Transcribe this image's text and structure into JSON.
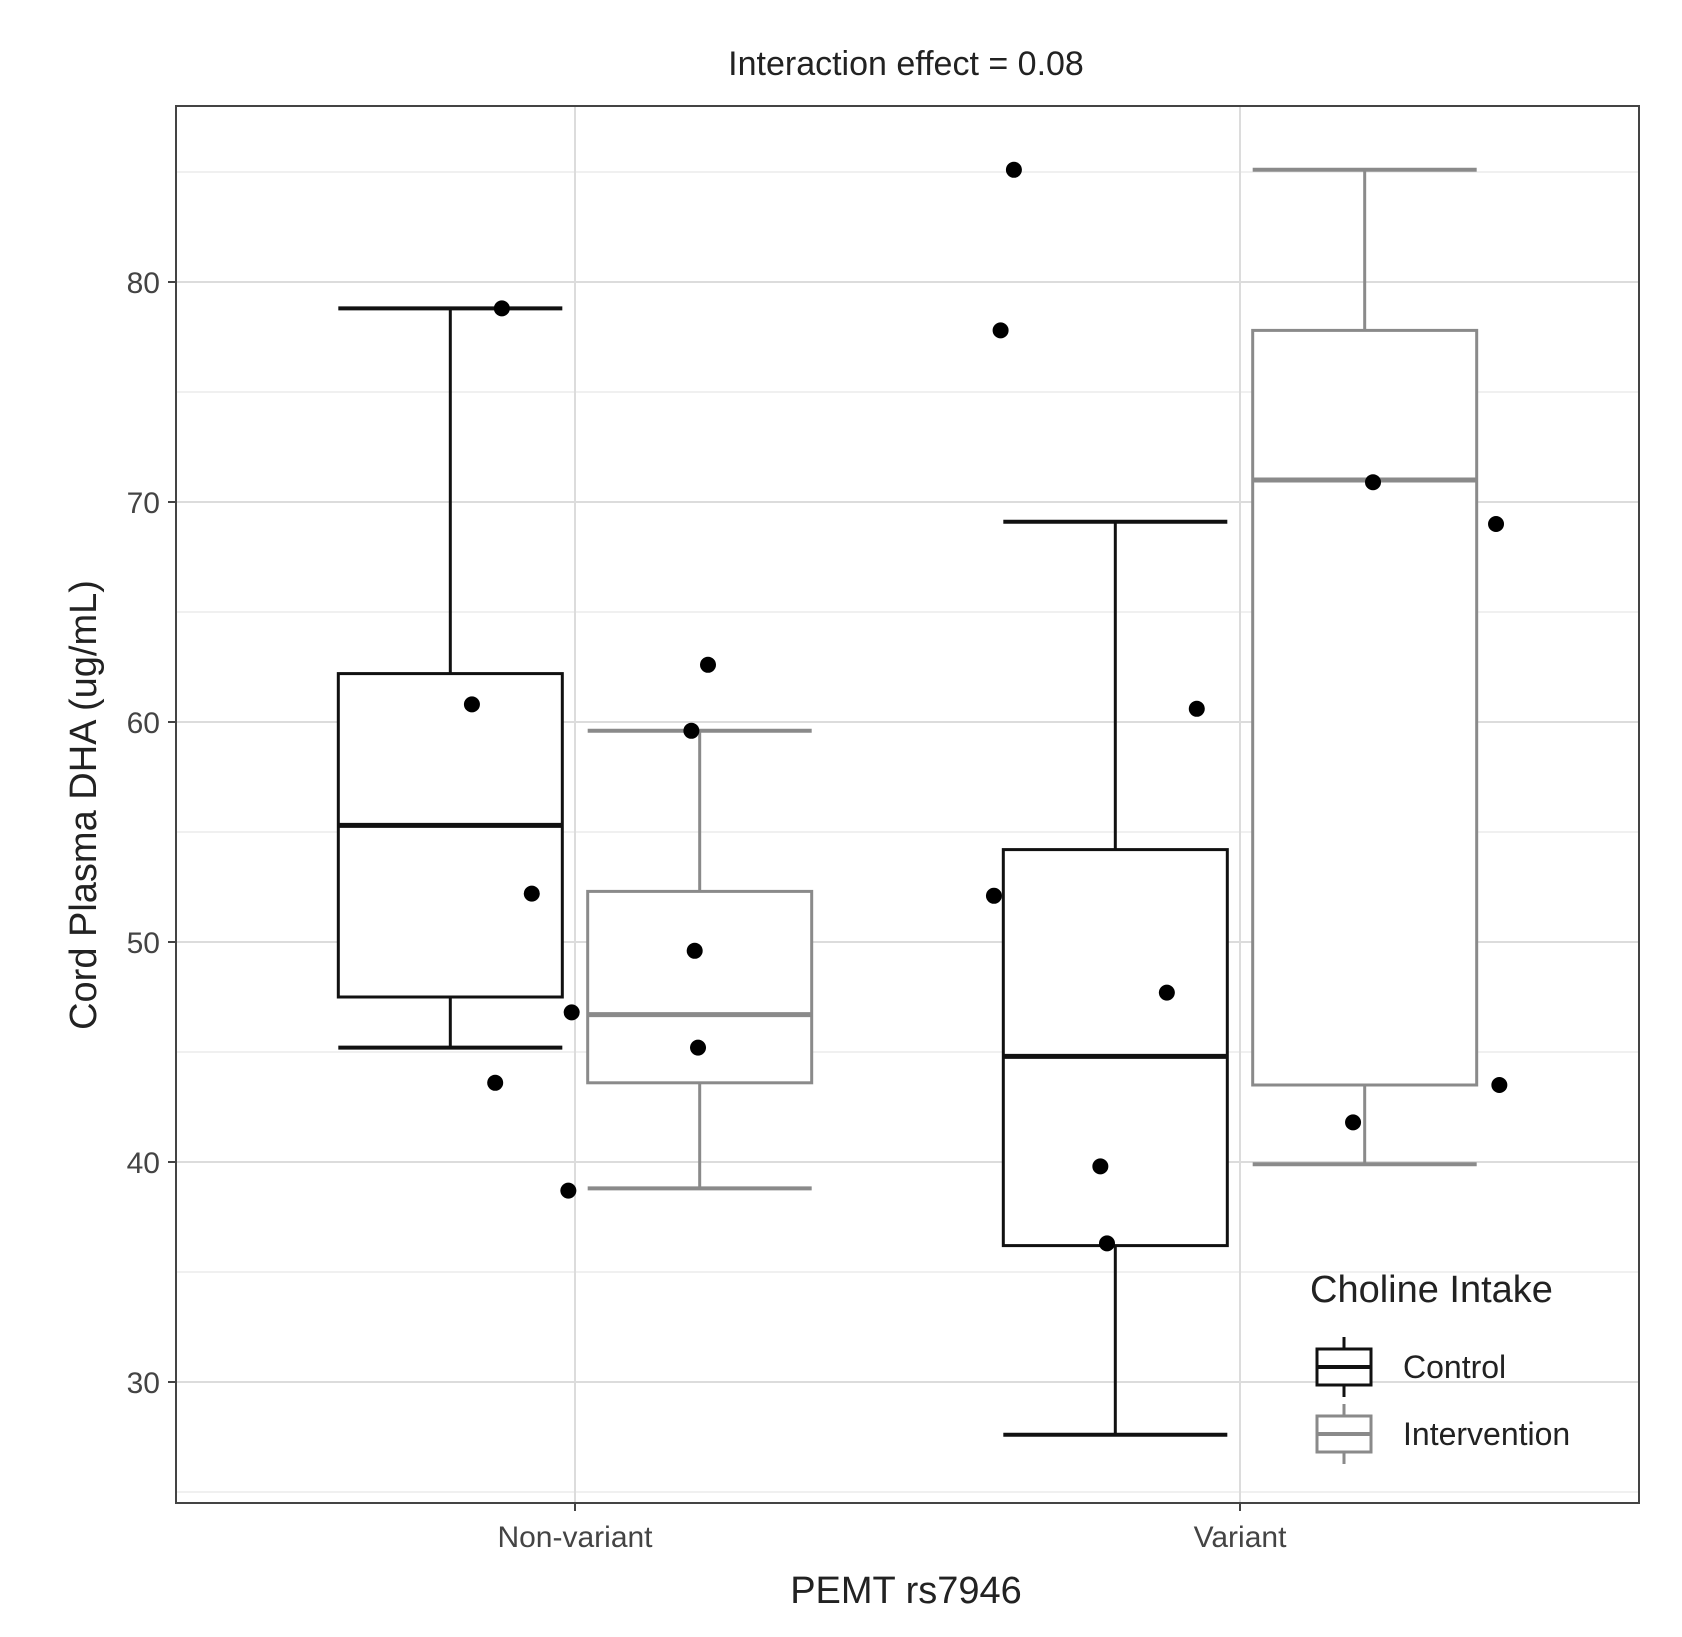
{
  "chart_data": {
    "type": "box",
    "title": "Interaction effect = 0.08",
    "xlabel": "PEMT rs7946",
    "ylabel": "Cord Plasma DHA (ug/mL)",
    "categories": [
      "Non-variant",
      "Variant"
    ],
    "ylim": [
      24.5,
      88
    ],
    "yticks": [
      30,
      40,
      50,
      60,
      70,
      80
    ],
    "grid": true,
    "legend": {
      "title": "Choline Intake",
      "position": "bottom-right inside",
      "entries": [
        "Control",
        "Intervention"
      ]
    },
    "series": [
      {
        "name": "Control",
        "color": "#111111",
        "boxes": [
          {
            "category": "Non-variant",
            "whisker_low": 45.2,
            "q1": 47.5,
            "median": 55.3,
            "q3": 62.2,
            "whisker_high": 78.8
          },
          {
            "category": "Variant",
            "whisker_low": 27.6,
            "q1": 36.2,
            "median": 44.8,
            "q3": 54.2,
            "whisker_high": 69.1
          }
        ]
      },
      {
        "name": "Intervention",
        "color": "#8a8a8a",
        "boxes": [
          {
            "category": "Non-variant",
            "whisker_low": 38.8,
            "q1": 43.6,
            "median": 46.7,
            "q3": 52.3,
            "whisker_high": 59.6
          },
          {
            "category": "Variant",
            "whisker_low": 39.9,
            "q1": 43.5,
            "median": 71.0,
            "q3": 77.8,
            "whisker_high": 85.1
          }
        ]
      }
    ],
    "points": [
      {
        "category": "Non-variant",
        "jitter": -0.155,
        "y": 60.8
      },
      {
        "category": "Non-variant",
        "jitter": -0.11,
        "y": 78.8
      },
      {
        "category": "Non-variant",
        "jitter": -0.065,
        "y": 52.2
      },
      {
        "category": "Non-variant",
        "jitter": -0.12,
        "y": 43.6
      },
      {
        "category": "Non-variant",
        "jitter": -0.005,
        "y": 46.8
      },
      {
        "category": "Non-variant",
        "jitter": -0.01,
        "y": 38.7
      },
      {
        "category": "Non-variant",
        "jitter": 0.175,
        "y": 59.6
      },
      {
        "category": "Non-variant",
        "jitter": 0.2,
        "y": 62.6
      },
      {
        "category": "Non-variant",
        "jitter": 0.18,
        "y": 49.6
      },
      {
        "category": "Non-variant",
        "jitter": 0.185,
        "y": 45.2
      },
      {
        "category": "Variant",
        "jitter": -0.34,
        "y": 85.1
      },
      {
        "category": "Variant",
        "jitter": -0.36,
        "y": 77.8
      },
      {
        "category": "Variant",
        "jitter": -0.37,
        "y": 52.1
      },
      {
        "category": "Variant",
        "jitter": -0.065,
        "y": 60.6
      },
      {
        "category": "Variant",
        "jitter": -0.11,
        "y": 47.7
      },
      {
        "category": "Variant",
        "jitter": -0.21,
        "y": 39.8
      },
      {
        "category": "Variant",
        "jitter": -0.2,
        "y": 36.3
      },
      {
        "category": "Variant",
        "jitter": 0.2,
        "y": 70.9
      },
      {
        "category": "Variant",
        "jitter": 0.385,
        "y": 69.0
      },
      {
        "category": "Variant",
        "jitter": 0.39,
        "y": 43.5
      },
      {
        "category": "Variant",
        "jitter": 0.17,
        "y": 41.8
      }
    ]
  }
}
